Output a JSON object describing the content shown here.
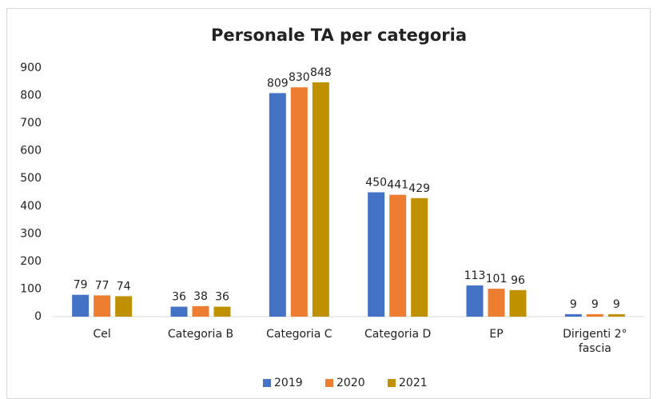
{
  "chart_data": {
    "type": "bar",
    "title": "Personale TA per categoria",
    "categories": [
      "Cel",
      "Categoria B",
      "Categoria C",
      "Categoria D",
      "EP",
      "Dirigenti 2° fascia"
    ],
    "series": [
      {
        "name": "2019",
        "color": "#4472c4",
        "values": [
          79,
          36,
          809,
          450,
          113,
          9
        ]
      },
      {
        "name": "2020",
        "color": "#ed7d31",
        "values": [
          77,
          38,
          830,
          441,
          101,
          9
        ]
      },
      {
        "name": "2021",
        "color": "#bf9000",
        "values": [
          74,
          36,
          848,
          429,
          96,
          9
        ]
      }
    ],
    "ylim": [
      0,
      900
    ],
    "yticks": [
      0,
      100,
      200,
      300,
      400,
      500,
      600,
      700,
      800,
      900
    ],
    "grid": false,
    "legend": "bottom"
  }
}
